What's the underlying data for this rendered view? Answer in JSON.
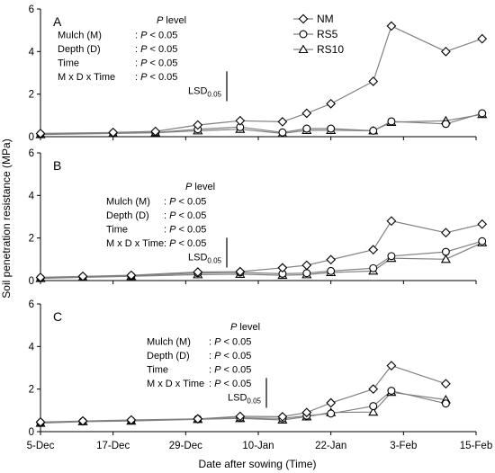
{
  "figure": {
    "ylabel": "Soil penetration resistance (MPa)",
    "xlabel": "Date after sowing (Time)",
    "x_tick_labels": [
      "5-Dec",
      "17-Dec",
      "29-Dec",
      "10-Jan",
      "22-Jan",
      "3-Feb",
      "15-Feb"
    ],
    "y_tick_labels": [
      "0",
      "2",
      "4",
      "6"
    ],
    "legend": [
      {
        "name": "NM",
        "marker": "diamond"
      },
      {
        "name": "RS5",
        "marker": "circle"
      },
      {
        "name": "RS10",
        "marker": "triangle"
      }
    ],
    "stats": {
      "header_italic": "P",
      "header_rest": " level",
      "rows": [
        {
          "label": "Mulch (M)",
          "value": "P < 0.05"
        },
        {
          "label": "Depth (D)",
          "value": "P < 0.05"
        },
        {
          "label": "Time",
          "value": "P < 0.05"
        },
        {
          "label": "M x D x Time",
          "value": "P < 0.05"
        }
      ],
      "lsd_main": "LSD",
      "lsd_sub": "0.05"
    },
    "colors": {
      "line": "#808080",
      "marker_edge": "#000000",
      "marker_fill": "#ffffff",
      "axis": "#000000"
    }
  },
  "chart_data": [
    {
      "type": "line",
      "panel_label": "A",
      "x": [
        "5-Dec",
        "17-Dec",
        "24-Dec",
        "31-Dec",
        "7-Jan",
        "14-Jan",
        "18-Jan",
        "22-Jan",
        "29-Jan",
        "1-Feb",
        "10-Feb",
        "16-Feb"
      ],
      "series": [
        {
          "name": "NM",
          "values": [
            0.15,
            0.2,
            0.25,
            0.55,
            0.75,
            0.7,
            1.1,
            1.55,
            2.6,
            5.2,
            4.0,
            4.6
          ]
        },
        {
          "name": "RS5",
          "values": [
            0.12,
            0.17,
            0.2,
            0.35,
            0.45,
            0.2,
            0.38,
            0.38,
            0.28,
            0.72,
            0.6,
            1.1
          ]
        },
        {
          "name": "RS10",
          "values": [
            0.1,
            0.15,
            0.18,
            0.28,
            0.35,
            0.15,
            0.3,
            0.3,
            0.28,
            0.68,
            0.75,
            1.05
          ]
        }
      ],
      "lsd": 1.4,
      "xlim": [
        "5-Dec",
        "15-Feb"
      ],
      "ylim": [
        0,
        6
      ],
      "grid": false,
      "legend_position": "top-right"
    },
    {
      "type": "line",
      "panel_label": "B",
      "x": [
        "5-Dec",
        "12-Dec",
        "20-Dec",
        "31-Dec",
        "7-Jan",
        "14-Jan",
        "18-Jan",
        "22-Jan",
        "29-Jan",
        "1-Feb",
        "10-Feb",
        "16-Feb"
      ],
      "series": [
        {
          "name": "NM",
          "values": [
            0.15,
            0.2,
            0.25,
            0.4,
            0.42,
            0.6,
            0.72,
            0.98,
            1.45,
            2.8,
            2.25,
            2.65
          ]
        },
        {
          "name": "RS5",
          "values": [
            0.12,
            0.17,
            0.22,
            0.35,
            0.38,
            0.32,
            0.35,
            0.45,
            0.58,
            1.15,
            1.35,
            1.85
          ]
        },
        {
          "name": "RS10",
          "values": [
            0.1,
            0.15,
            0.2,
            0.28,
            0.3,
            0.25,
            0.28,
            0.38,
            0.45,
            1.05,
            1.0,
            1.78
          ]
        }
      ],
      "lsd": 1.4,
      "xlim": [
        "5-Dec",
        "15-Feb"
      ],
      "ylim": [
        0,
        6
      ],
      "grid": false
    },
    {
      "type": "line",
      "panel_label": "C",
      "x": [
        "5-Dec",
        "12-Dec",
        "20-Dec",
        "31-Dec",
        "7-Jan",
        "14-Jan",
        "18-Jan",
        "22-Jan",
        "29-Jan",
        "1-Feb",
        "10-Feb"
      ],
      "series": [
        {
          "name": "NM",
          "values": [
            0.45,
            0.5,
            0.55,
            0.6,
            0.72,
            0.7,
            0.9,
            1.35,
            2.0,
            3.1,
            2.25
          ]
        },
        {
          "name": "RS5",
          "values": [
            0.42,
            0.48,
            0.52,
            0.6,
            0.65,
            0.62,
            0.75,
            0.85,
            1.2,
            1.92,
            1.32
          ]
        },
        {
          "name": "RS10",
          "values": [
            0.4,
            0.47,
            0.5,
            0.58,
            0.62,
            0.55,
            0.7,
            0.9,
            0.92,
            1.85,
            1.5
          ]
        }
      ],
      "lsd": 1.4,
      "xlim": [
        "5-Dec",
        "15-Feb"
      ],
      "ylim": [
        0,
        6
      ],
      "grid": false
    }
  ]
}
